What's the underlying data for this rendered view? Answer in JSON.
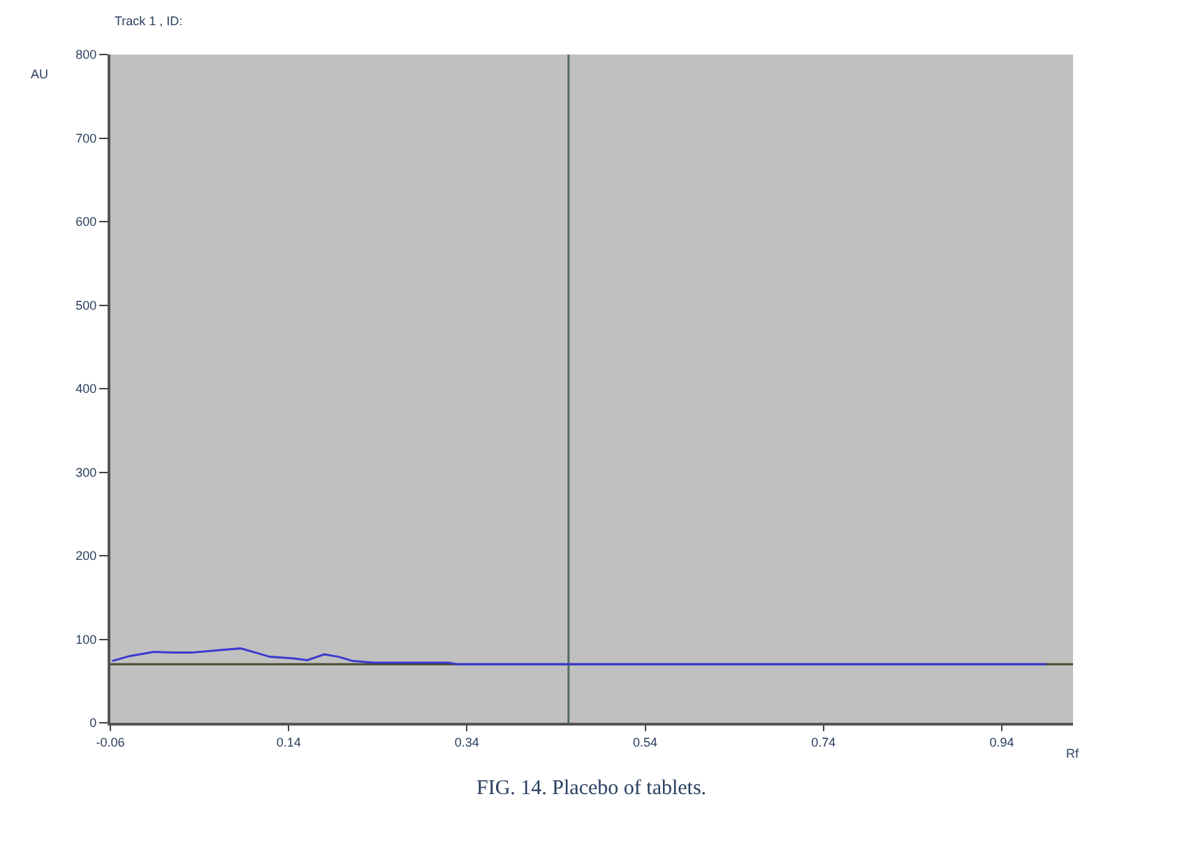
{
  "chart_data": {
    "type": "line",
    "title": "Track 1 , ID:",
    "xlabel": "Rf",
    "ylabel": "AU",
    "annotations": [
      "FIG. 14. Placebo of tablets."
    ],
    "xlim": [
      -0.06,
      1.02
    ],
    "xticks": [
      -0.06,
      0.14,
      0.34,
      0.54,
      0.74,
      0.94
    ],
    "ylim": [
      0,
      800
    ],
    "yticks": [
      0,
      100,
      200,
      300,
      400,
      500,
      600,
      700,
      800
    ],
    "grid": false,
    "marker": "none",
    "line_style": "solid",
    "ref_lines": [
      {
        "axis": "y",
        "value": 70,
        "color": "#4a4a30"
      },
      {
        "axis": "x",
        "value": 0.454,
        "color": "#4f6e60"
      }
    ],
    "series": [
      {
        "color": "#3a3ad0",
        "x": [
          -0.058,
          -0.038,
          -0.011,
          0.009,
          0.031,
          0.063,
          0.086,
          0.103,
          0.119,
          0.146,
          0.161,
          0.18,
          0.196,
          0.212,
          0.235,
          0.319,
          0.33,
          0.99
        ],
        "values": [
          74,
          80,
          85,
          84,
          84,
          87,
          89,
          84,
          79,
          77,
          75,
          82,
          79,
          74,
          72,
          72,
          70,
          70
        ]
      }
    ]
  }
}
